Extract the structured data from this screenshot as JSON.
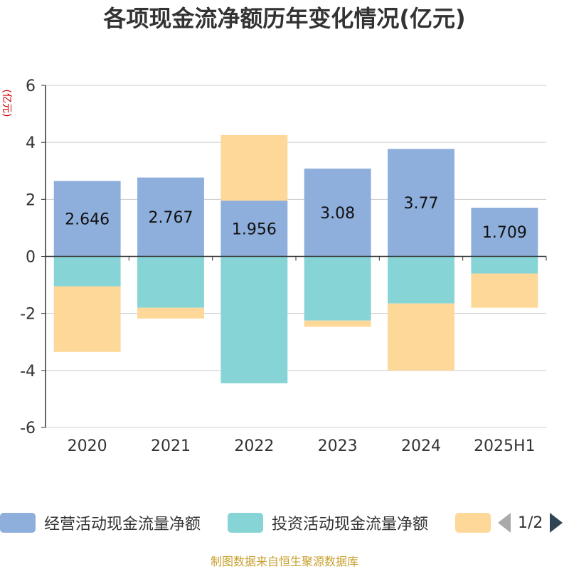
{
  "title": "各项现金流净额历年变化情况(亿元)",
  "unit_label": "(亿元)",
  "source": "制图数据来自恒生聚源数据库",
  "legend": {
    "items": [
      {
        "label": "经营活动现金流量净额",
        "color": "#8eaedc"
      },
      {
        "label": "投资活动现金流量净额",
        "color": "#86d4d6"
      },
      {
        "label": "",
        "color": "#fdd898"
      }
    ],
    "page": "1/2"
  },
  "chart_data": {
    "type": "bar",
    "stacked": true,
    "categories": [
      "2020",
      "2021",
      "2022",
      "2023",
      "2024",
      "2025H1"
    ],
    "series": [
      {
        "name": "经营活动现金流量净额",
        "color": "#8eaedc",
        "values": [
          2.646,
          2.767,
          1.956,
          3.08,
          3.77,
          1.709
        ],
        "show_labels": true
      },
      {
        "name": "投资活动现金流量净额",
        "color": "#86d4d6",
        "values": [
          -1.05,
          -1.8,
          -4.45,
          -2.25,
          -1.65,
          -0.6
        ]
      },
      {
        "name": "",
        "color": "#fdd898",
        "values": [
          -2.3,
          -0.38,
          2.3,
          -0.22,
          -2.35,
          -1.2
        ]
      }
    ],
    "ylim": [
      -6,
      6
    ],
    "yticks": [
      -6,
      -4,
      -2,
      0,
      2,
      4,
      6
    ],
    "ylabel": "(亿元)",
    "grid": true
  }
}
